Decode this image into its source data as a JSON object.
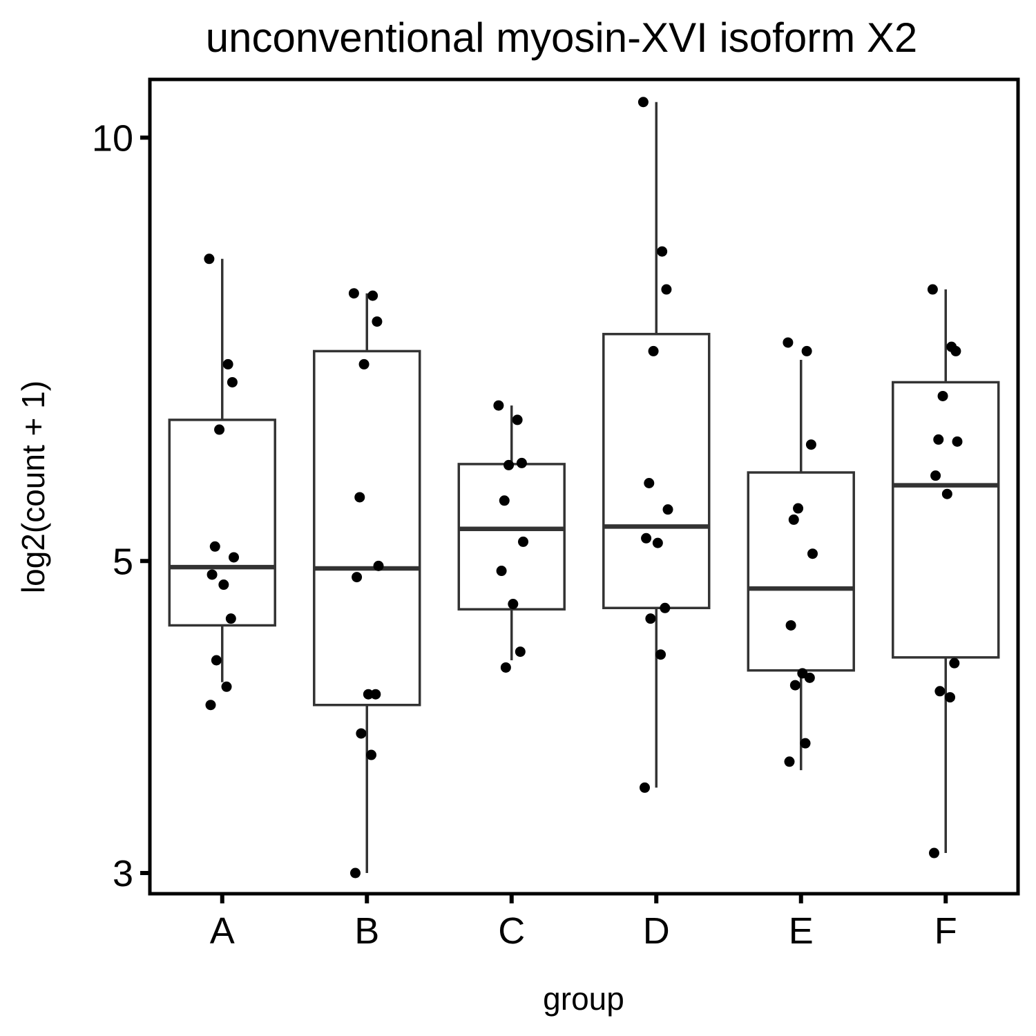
{
  "chart_data": {
    "type": "boxplot",
    "title": "unconventional myosin-XVI isoform X2",
    "xlabel": "group",
    "ylabel": "log2(count + 1)",
    "y_scale": "log2",
    "ylim": [
      2.9,
      11.0
    ],
    "y_ticks": [
      3,
      5,
      10
    ],
    "y_tick_labels": [
      "3",
      "5",
      "10"
    ],
    "categories": [
      "A",
      "B",
      "C",
      "D",
      "E",
      "F"
    ],
    "grid": false,
    "legend": "none",
    "boxes": [
      {
        "group": "A",
        "whisker_low": 4.1,
        "q1": 4.5,
        "median": 4.95,
        "q3": 6.3,
        "whisker_high": 8.2
      },
      {
        "group": "B",
        "whisker_low": 3.0,
        "q1": 3.95,
        "median": 4.94,
        "q3": 7.05,
        "whisker_high": 7.75
      },
      {
        "group": "C",
        "whisker_low": 4.25,
        "q1": 4.62,
        "median": 5.27,
        "q3": 5.86,
        "whisker_high": 6.45
      },
      {
        "group": "D",
        "whisker_low": 3.45,
        "q1": 4.63,
        "median": 5.29,
        "q3": 7.25,
        "whisker_high": 10.6
      },
      {
        "group": "E",
        "whisker_low": 3.55,
        "q1": 4.18,
        "median": 4.78,
        "q3": 5.78,
        "whisker_high": 6.95
      },
      {
        "group": "F",
        "whisker_low": 3.1,
        "q1": 4.27,
        "median": 5.66,
        "q3": 6.7,
        "whisker_high": 7.8
      }
    ],
    "points": [
      {
        "group": "A",
        "values": [
          8.2,
          6.9,
          6.7,
          6.2,
          5.12,
          5.03,
          4.89,
          4.81,
          4.55,
          4.25,
          4.07,
          3.95
        ]
      },
      {
        "group": "B",
        "values": [
          7.75,
          7.72,
          7.4,
          6.9,
          5.55,
          4.96,
          4.87,
          4.02,
          4.02,
          3.77,
          3.64,
          3.0
        ]
      },
      {
        "group": "C",
        "values": [
          6.45,
          6.3,
          5.87,
          5.85,
          5.52,
          5.16,
          4.92,
          4.66,
          4.31,
          4.2
        ]
      },
      {
        "group": "D",
        "values": [
          10.6,
          8.3,
          7.8,
          7.05,
          5.68,
          5.44,
          5.19,
          5.15,
          4.63,
          4.55,
          4.29,
          3.45
        ]
      },
      {
        "group": "E",
        "values": [
          7.15,
          7.05,
          6.05,
          5.45,
          5.35,
          5.06,
          4.5,
          4.16,
          4.13,
          4.08,
          3.71,
          3.6
        ]
      },
      {
        "group": "F",
        "values": [
          7.8,
          7.1,
          7.05,
          6.55,
          6.1,
          6.08,
          5.75,
          5.58,
          4.23,
          4.04,
          4.0,
          3.1
        ]
      }
    ]
  }
}
